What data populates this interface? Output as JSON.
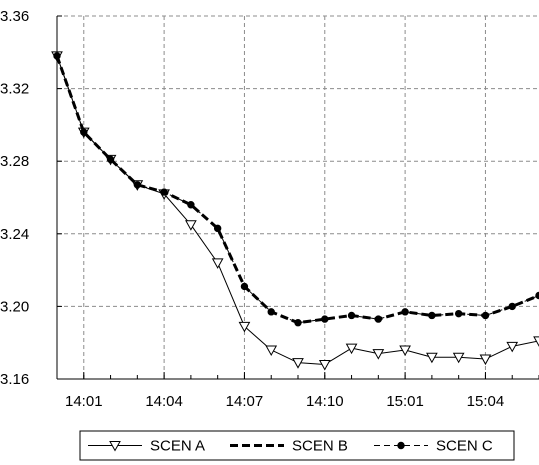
{
  "chart_data": {
    "type": "line",
    "title": "",
    "xlabel": "",
    "ylabel": "",
    "ylim": [
      3.16,
      3.36
    ],
    "yticks": [
      "3.16",
      "3.20",
      "3.24",
      "3.28",
      "3.32",
      "3.36"
    ],
    "ytick_values": [
      3.16,
      3.2,
      3.24,
      3.28,
      3.32,
      3.36
    ],
    "x_tick_labels": [
      "14:01",
      "14:04",
      "14:07",
      "14:10",
      "15:01",
      "15:04"
    ],
    "x_tick_positions": [
      1,
      4,
      7,
      10,
      13,
      16
    ],
    "grid": true,
    "legend_position": "bottom",
    "series": [
      {
        "name": "SCEN A",
        "marker": "triangle-down-open",
        "line_style": "solid",
        "line_width": "thin",
        "color": "#000000",
        "values": [
          3.338,
          3.296,
          3.281,
          3.267,
          3.262,
          3.245,
          3.224,
          3.189,
          3.176,
          3.169,
          3.168,
          3.177,
          3.174,
          3.176,
          3.172,
          3.172,
          3.171,
          3.178,
          3.181
        ]
      },
      {
        "name": "SCEN B",
        "marker": "none",
        "line_style": "dashed",
        "line_width": "thick",
        "color": "#000000",
        "values": [
          3.338,
          3.296,
          3.281,
          3.267,
          3.263,
          3.256,
          3.243,
          3.211,
          3.197,
          3.191,
          3.193,
          3.195,
          3.193,
          3.197,
          3.195,
          3.196,
          3.195,
          3.2,
          3.206
        ]
      },
      {
        "name": "SCEN C",
        "marker": "filled-circle",
        "line_style": "dashed",
        "line_width": "thin",
        "color": "#000000",
        "values": [
          3.338,
          3.296,
          3.281,
          3.267,
          3.263,
          3.256,
          3.243,
          3.211,
          3.197,
          3.191,
          3.193,
          3.195,
          3.193,
          3.197,
          3.195,
          3.196,
          3.195,
          3.2,
          3.206
        ]
      }
    ]
  }
}
